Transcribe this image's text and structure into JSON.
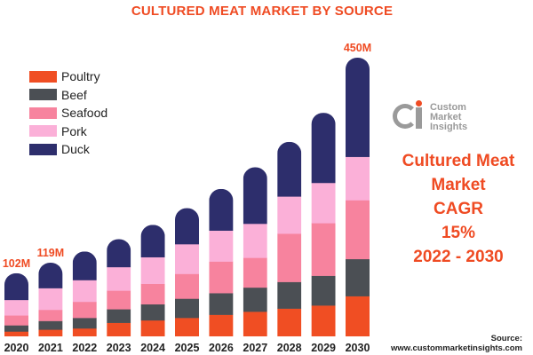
{
  "header": {
    "title": "CULTURED MEAT MARKET BY SOURCE"
  },
  "logo": {
    "lines": [
      "Custom",
      "Market",
      "Insights"
    ]
  },
  "cagr": {
    "lines": [
      "Cultured Meat",
      "Market",
      "CAGR",
      "15%",
      "2022 - 2030"
    ]
  },
  "source": {
    "label": "Source:",
    "url": "www.custommarketinsights.com"
  },
  "chart_data": {
    "type": "bar",
    "stacked": true,
    "title": "CULTURED MEAT MARKET BY SOURCE",
    "categories": [
      "2020",
      "2021",
      "2022",
      "2023",
      "2024",
      "2025",
      "2026",
      "2027",
      "2028",
      "2029",
      "2030"
    ],
    "totals": [
      102,
      119,
      137,
      157,
      180,
      207,
      238,
      273,
      314,
      361,
      450
    ],
    "total_labels": [
      {
        "index": 0,
        "text": "102M"
      },
      {
        "index": 1,
        "text": "119M"
      },
      {
        "index": 10,
        "text": "450M"
      }
    ],
    "series": [
      {
        "name": "Poultry",
        "color": "#f04e23",
        "values": [
          8,
          11,
          13,
          22,
          26,
          30,
          35,
          40,
          45,
          50,
          65
        ]
      },
      {
        "name": "Beef",
        "color": "#4b4f54",
        "values": [
          10,
          14,
          17,
          22,
          26,
          31,
          35,
          39,
          43,
          48,
          60
        ]
      },
      {
        "name": "Seafood",
        "color": "#f7839e",
        "values": [
          16,
          18,
          26,
          30,
          33,
          40,
          51,
          48,
          78,
          85,
          95
        ]
      },
      {
        "name": "Pork",
        "color": "#fbb0d8",
        "values": [
          25,
          35,
          35,
          38,
          43,
          48,
          50,
          55,
          60,
          65,
          70
        ]
      },
      {
        "name": "Duck",
        "color": "#2d2e6c",
        "values": [
          43,
          41,
          46,
          45,
          52,
          58,
          67,
          91,
          88,
          113,
          160
        ]
      }
    ],
    "ylim": [
      0,
      450
    ],
    "grid": false,
    "legend": "top-left"
  }
}
